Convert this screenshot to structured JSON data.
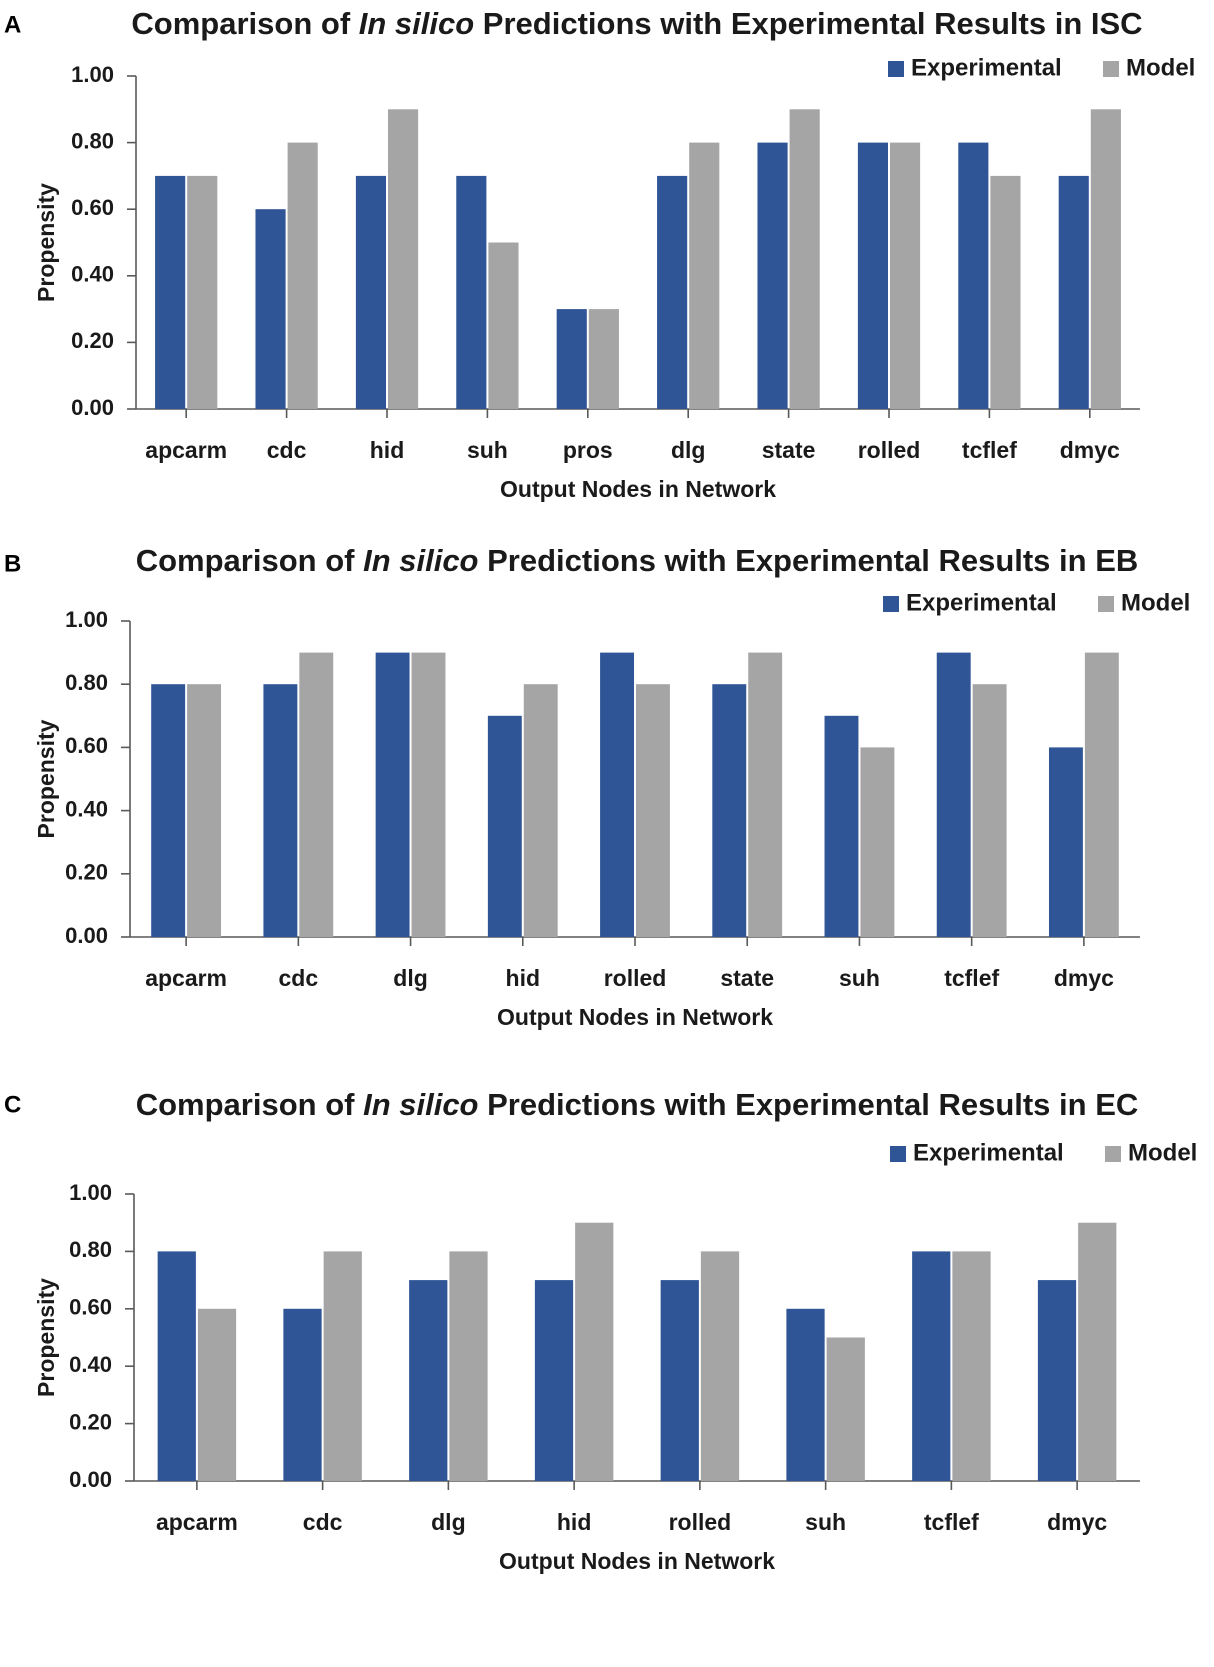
{
  "colors": {
    "experimental": "#2f5597",
    "model": "#a5a5a5",
    "axis": "#595959",
    "text": "#1a1a1a"
  },
  "chart_data": [
    {
      "panel": "A",
      "type": "bar",
      "title_parts": [
        {
          "text": "Comparison of ",
          "italic": false
        },
        {
          "text": "In silico",
          "italic": true
        },
        {
          "text": " Predictions with Experimental Results in ISC",
          "italic": false
        }
      ],
      "categories": [
        "apcarm",
        "cdc",
        "hid",
        "suh",
        "pros",
        "dlg",
        "state",
        "rolled",
        "tcflef",
        "dmyc"
      ],
      "series": [
        {
          "name": "Experimental",
          "values": [
            0.7,
            0.6,
            0.7,
            0.7,
            0.3,
            0.7,
            0.8,
            0.8,
            0.8,
            0.7
          ]
        },
        {
          "name": "Model",
          "values": [
            0.7,
            0.8,
            0.9,
            0.5,
            0.3,
            0.8,
            0.9,
            0.8,
            0.7,
            0.9
          ]
        }
      ],
      "xlabel": "Output Nodes in Network",
      "ylabel": "Propensity",
      "ylim": [
        0,
        1
      ],
      "yticks": [
        "0.00",
        "0.20",
        "0.40",
        "0.60",
        "0.80",
        "1.00"
      ],
      "legend_position": "top-right",
      "grid": false
    },
    {
      "panel": "B",
      "type": "bar",
      "title_parts": [
        {
          "text": "Comparison of ",
          "italic": false
        },
        {
          "text": "In silico",
          "italic": true
        },
        {
          "text": " Predictions with Experimental Results in EB",
          "italic": false
        }
      ],
      "categories": [
        "apcarm",
        "cdc",
        "dlg",
        "hid",
        "rolled",
        "state",
        "suh",
        "tcflef",
        "dmyc"
      ],
      "series": [
        {
          "name": "Experimental",
          "values": [
            0.8,
            0.8,
            0.9,
            0.7,
            0.9,
            0.8,
            0.7,
            0.9,
            0.6
          ]
        },
        {
          "name": "Model",
          "values": [
            0.8,
            0.9,
            0.9,
            0.8,
            0.8,
            0.9,
            0.6,
            0.8,
            0.9
          ]
        }
      ],
      "xlabel": "Output Nodes in Network",
      "ylabel": "Propensity",
      "ylim": [
        0,
        1
      ],
      "yticks": [
        "0.00",
        "0.20",
        "0.40",
        "0.60",
        "0.80",
        "1.00"
      ],
      "legend_position": "top-right",
      "grid": false
    },
    {
      "panel": "C",
      "type": "bar",
      "title_parts": [
        {
          "text": "Comparison of ",
          "italic": false
        },
        {
          "text": "In silico",
          "italic": true
        },
        {
          "text": " Predictions with Experimental Results in EC",
          "italic": false
        }
      ],
      "categories": [
        "apcarm",
        "cdc",
        "dlg",
        "hid",
        "rolled",
        "suh",
        "tcflef",
        "dmyc"
      ],
      "series": [
        {
          "name": "Experimental",
          "values": [
            0.8,
            0.6,
            0.7,
            0.7,
            0.7,
            0.6,
            0.8,
            0.7
          ]
        },
        {
          "name": "Model",
          "values": [
            0.6,
            0.8,
            0.8,
            0.9,
            0.8,
            0.5,
            0.8,
            0.9
          ]
        }
      ],
      "xlabel": "Output Nodes in Network",
      "ylabel": "Propensity",
      "ylim": [
        0,
        1
      ],
      "yticks": [
        "0.00",
        "0.20",
        "0.40",
        "0.60",
        "0.80",
        "1.00"
      ],
      "legend_position": "top-right",
      "grid": false
    }
  ]
}
